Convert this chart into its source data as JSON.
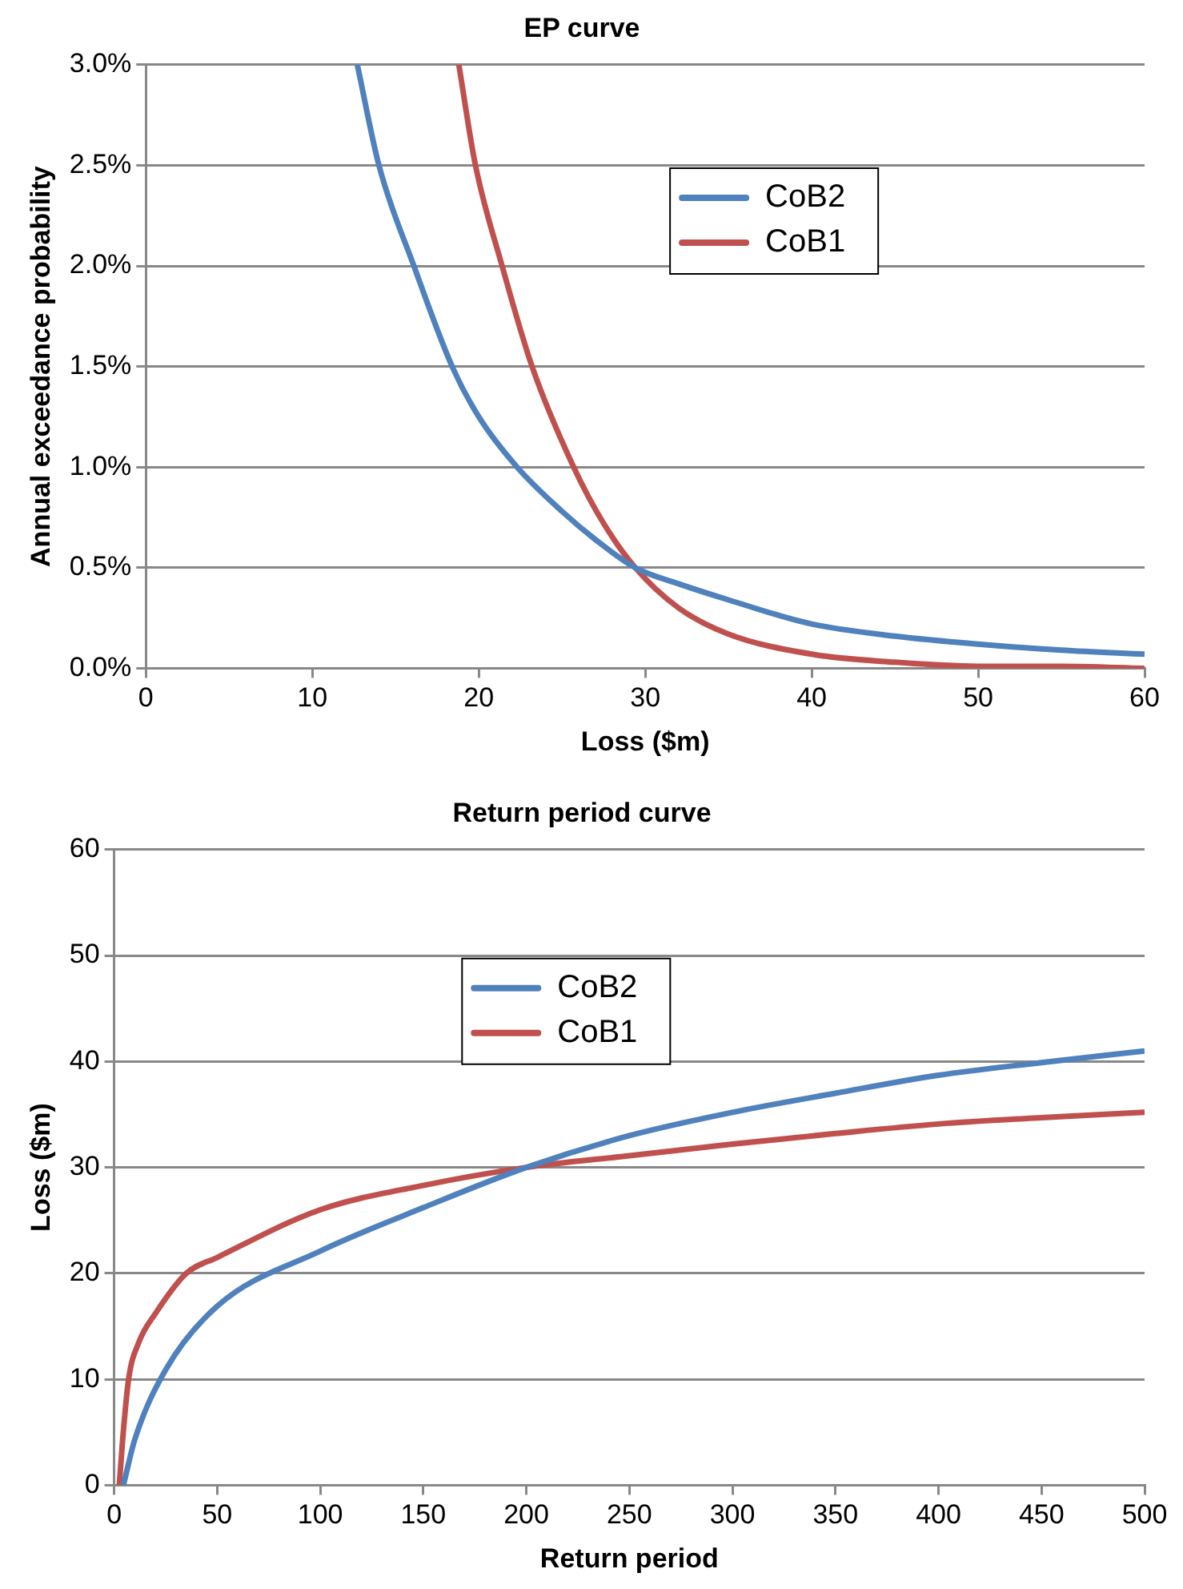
{
  "chart_data": [
    {
      "type": "line",
      "title": "EP curve",
      "xlabel": "Loss ($m)",
      "ylabel": "Annual exceedance probability",
      "xlim": [
        0,
        60
      ],
      "xticks": [
        0,
        10,
        20,
        30,
        40,
        50,
        60
      ],
      "ylim": [
        0,
        3
      ],
      "yticks": [
        {
          "value": 0,
          "label": "0.0%"
        },
        {
          "value": 0.5,
          "label": "0.5%"
        },
        {
          "value": 1,
          "label": "1.0%"
        },
        {
          "value": 1.5,
          "label": "1.5%"
        },
        {
          "value": 2,
          "label": "2.0%"
        },
        {
          "value": 2.5,
          "label": "2.5%"
        },
        {
          "value": 3,
          "label": "3.0%"
        }
      ],
      "grid": "y",
      "legend": "top",
      "marker": "none",
      "line_style": "solid",
      "series": [
        {
          "name": "CoB2",
          "color": "#4f81bd",
          "x": [
            12.7,
            14,
            16.1,
            18.4,
            20,
            22.3,
            25,
            27,
            29.4,
            32,
            35,
            40,
            45,
            50,
            55,
            60
          ],
          "values": [
            3.0,
            2.5,
            2.0,
            1.5,
            1.25,
            1.0,
            0.78,
            0.64,
            0.5,
            0.42,
            0.34,
            0.22,
            0.16,
            0.12,
            0.09,
            0.07
          ]
        },
        {
          "name": "CoB1",
          "color": "#c0504d",
          "x": [
            18.8,
            19.8,
            21.4,
            23.2,
            25.7,
            27.5,
            29.4,
            32,
            35,
            40,
            45,
            50,
            55,
            60
          ],
          "values": [
            3.0,
            2.5,
            2.0,
            1.5,
            1.0,
            0.72,
            0.5,
            0.3,
            0.17,
            0.07,
            0.03,
            0.01,
            0.01,
            0.0
          ]
        }
      ]
    },
    {
      "type": "line",
      "title": "Return period curve",
      "xlabel": "Return period",
      "ylabel": "Loss ($m)",
      "xlim": [
        0,
        500
      ],
      "xticks": [
        0,
        50,
        100,
        150,
        200,
        250,
        300,
        350,
        400,
        450,
        500
      ],
      "ylim": [
        0,
        60
      ],
      "yticks": [
        0,
        10,
        20,
        30,
        40,
        50,
        60
      ],
      "grid": "y",
      "legend": "top",
      "marker": "none",
      "line_style": "solid",
      "series": [
        {
          "name": "CoB2",
          "color": "#4f81bd",
          "x": [
            4.5,
            10,
            25,
            50,
            100,
            150,
            200,
            250,
            300,
            350,
            400,
            450,
            500
          ],
          "values": [
            0,
            4.3,
            10.9,
            16.9,
            22.1,
            26.2,
            30,
            33,
            35.2,
            37,
            38.7,
            39.9,
            41
          ]
        },
        {
          "name": "CoB1",
          "color": "#c0504d",
          "x": [
            2.5,
            4,
            7,
            12,
            20,
            35,
            50,
            100,
            150,
            200,
            250,
            300,
            350,
            400,
            450,
            500
          ],
          "values": [
            0,
            4,
            10,
            13.5,
            16.2,
            20,
            21.5,
            26,
            28.3,
            30,
            31.1,
            32.2,
            33.2,
            34.1,
            34.7,
            35.2
          ]
        }
      ]
    }
  ]
}
